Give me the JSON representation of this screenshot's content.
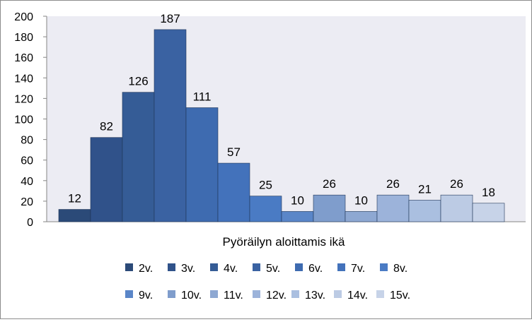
{
  "chart_data": {
    "type": "bar",
    "xlabel": "Pyöräilyn aloittamis ikä",
    "ylabel": "",
    "ylim": [
      0,
      200
    ],
    "yticks": [
      "0",
      "20",
      "40",
      "60",
      "80",
      "100",
      "120",
      "140",
      "160",
      "180",
      "200"
    ],
    "grid": false,
    "legend_position": "bottom",
    "series": [
      {
        "name": "2v.",
        "value": 12,
        "color": "#2b4a78"
      },
      {
        "name": "3v.",
        "value": 82,
        "color": "#30528a"
      },
      {
        "name": "4v.",
        "value": 126,
        "color": "#355c96"
      },
      {
        "name": "5v.",
        "value": 187,
        "color": "#3a62a2"
      },
      {
        "name": "6v.",
        "value": 111,
        "color": "#3e6bb0"
      },
      {
        "name": "7v.",
        "value": 57,
        "color": "#4372bb"
      },
      {
        "name": "8v.",
        "value": 25,
        "color": "#4a7bc4"
      },
      {
        "name": "9v.",
        "value": 10,
        "color": "#5a86c8"
      },
      {
        "name": "10v.",
        "value": 26,
        "color": "#7f9dcc"
      },
      {
        "name": "11v.",
        "value": 10,
        "color": "#8ea8d2"
      },
      {
        "name": "12v.",
        "value": 26,
        "color": "#9cb3da"
      },
      {
        "name": "13v.",
        "value": 21,
        "color": "#aabfe0"
      },
      {
        "name": "14v.",
        "value": 26,
        "color": "#bccbe4"
      },
      {
        "name": "15v.",
        "value": 18,
        "color": "#c7d3e8"
      }
    ]
  }
}
